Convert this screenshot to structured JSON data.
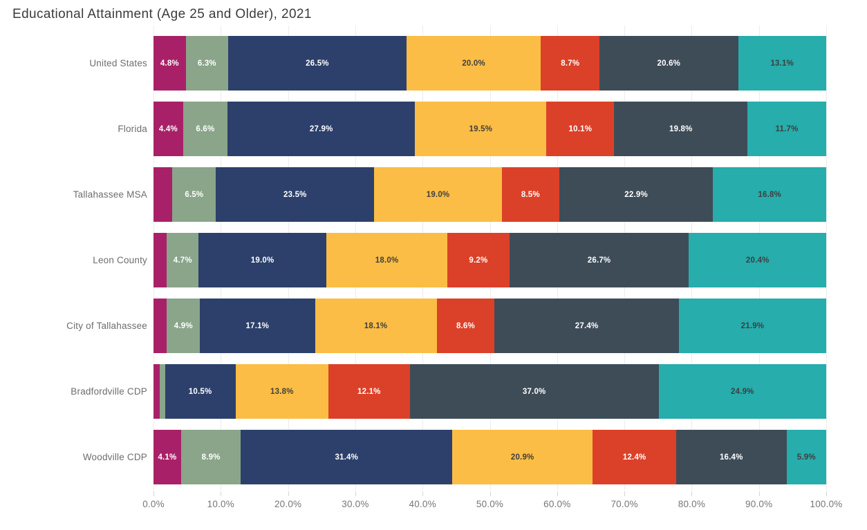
{
  "title": "Educational Attainment (Age 25 and Older), 2021",
  "colors": {
    "magenta": "#a82168",
    "sage_green": "#8aa58a",
    "navy": "#2c406b",
    "yellow": "#fbbd45",
    "red": "#db4128",
    "slate": "#3e4c58",
    "teal": "#26adac",
    "gridline": "#ececec",
    "axis_label": "#767676",
    "category_label": "#6d6d6d",
    "title_text": "#3b3b3b",
    "label_on_dark": "#ffffff",
    "label_on_light": "#3f3f3f"
  },
  "chart_data": {
    "type": "bar",
    "orientation": "horizontal",
    "stacked": true,
    "unit": "%",
    "grid": true,
    "legend": "none",
    "title": "Educational Attainment (Age 25 and Older), 2021",
    "x_axis": {
      "range": [
        0,
        100
      ],
      "tick_values": [
        0,
        10,
        20,
        30,
        40,
        50,
        60,
        70,
        80,
        90,
        100
      ],
      "tick_labels": [
        "0.0%",
        "10.0%",
        "20.0%",
        "30.0%",
        "40.0%",
        "50.0%",
        "60.0%",
        "70.0%",
        "80.0%",
        "90.0%",
        "100.0%"
      ]
    },
    "series_colors": [
      "#a82168",
      "#8aa58a",
      "#2c406b",
      "#fbbd45",
      "#db4128",
      "#3e4c58",
      "#26adac"
    ],
    "series_label_colors": [
      "#ffffff",
      "#ffffff",
      "#ffffff",
      "#3f3f3f",
      "#ffffff",
      "#ffffff",
      "#3f3f3f"
    ],
    "categories": [
      "United States",
      "Florida",
      "Tallahassee MSA",
      "Leon County",
      "City of Tallahassee",
      "Bradfordville CDP",
      "Woodville CDP"
    ],
    "rows": [
      {
        "category": "United States",
        "values": [
          4.8,
          6.3,
          26.5,
          20.0,
          8.7,
          20.6,
          13.1
        ],
        "labels": [
          "4.8%",
          "6.3%",
          "26.5%",
          "20.0%",
          "8.7%",
          "20.6%",
          "13.1%"
        ]
      },
      {
        "category": "Florida",
        "values": [
          4.4,
          6.6,
          27.9,
          19.5,
          10.1,
          19.8,
          11.7
        ],
        "labels": [
          "4.4%",
          "6.6%",
          "27.9%",
          "19.5%",
          "10.1%",
          "19.8%",
          "11.7%"
        ]
      },
      {
        "category": "Tallahassee MSA",
        "values": [
          2.8,
          6.5,
          23.5,
          19.0,
          8.5,
          22.9,
          16.8
        ],
        "labels": [
          "",
          "6.5%",
          "23.5%",
          "19.0%",
          "8.5%",
          "22.9%",
          "16.8%"
        ]
      },
      {
        "category": "Leon County",
        "values": [
          2.0,
          4.7,
          19.0,
          18.0,
          9.2,
          26.7,
          20.4
        ],
        "labels": [
          "",
          "4.7%",
          "19.0%",
          "18.0%",
          "9.2%",
          "26.7%",
          "20.4%"
        ]
      },
      {
        "category": "City of Tallahassee",
        "values": [
          2.0,
          4.9,
          17.1,
          18.1,
          8.6,
          27.4,
          21.9
        ],
        "labels": [
          "",
          "4.9%",
          "17.1%",
          "18.1%",
          "8.6%",
          "27.4%",
          "21.9%"
        ]
      },
      {
        "category": "Bradfordville CDP",
        "values": [
          0.9,
          0.8,
          10.5,
          13.8,
          12.1,
          37.0,
          24.9
        ],
        "labels": [
          "",
          "",
          "10.5%",
          "13.8%",
          "12.1%",
          "37.0%",
          "24.9%"
        ]
      },
      {
        "category": "Woodville CDP",
        "values": [
          4.1,
          8.9,
          31.4,
          20.9,
          12.4,
          16.4,
          5.9
        ],
        "labels": [
          "4.1%",
          "8.9%",
          "31.4%",
          "20.9%",
          "12.4%",
          "16.4%",
          "5.9%"
        ]
      }
    ]
  }
}
